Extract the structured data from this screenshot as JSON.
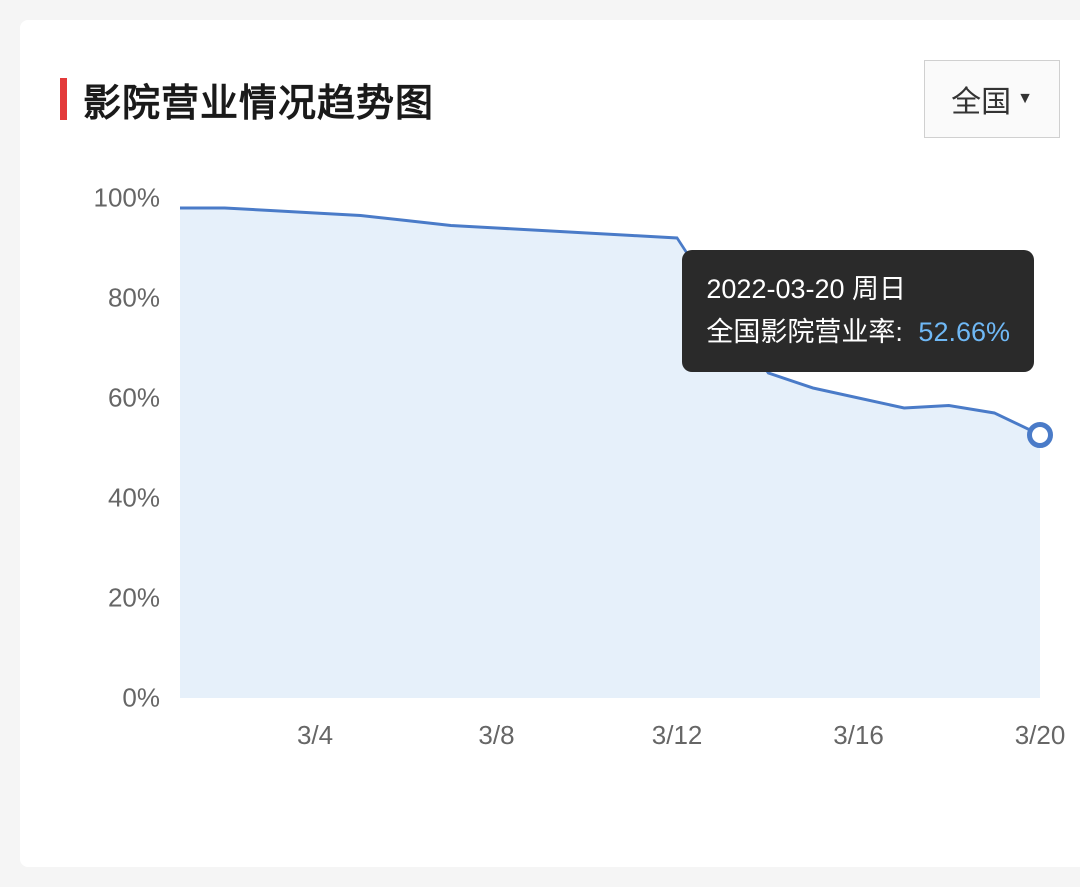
{
  "header": {
    "title": "影院营业情况趋势图",
    "dropdown_label": "全国",
    "title_bar_color": "#e33a3a"
  },
  "chart": {
    "type": "area",
    "background_color": "#ffffff",
    "area_fill_color": "#e6f0fa",
    "line_color": "#4a7bc8",
    "line_width": 3,
    "marker_border_color": "#4a7bc8",
    "marker_fill_color": "#ffffff",
    "y_axis": {
      "min": 0,
      "max": 100,
      "ticks": [
        0,
        20,
        40,
        60,
        80,
        100
      ],
      "unit": "%",
      "label_color": "#666666",
      "label_fontsize": 26
    },
    "x_axis": {
      "labels": [
        "3/4",
        "3/8",
        "3/12",
        "3/16",
        "3/20"
      ],
      "label_positions": [
        0.157,
        0.368,
        0.578,
        0.789,
        1.0
      ],
      "label_color": "#666666",
      "label_fontsize": 26
    },
    "series": {
      "name": "全国影院营业率",
      "x_fraction": [
        0.0,
        0.052,
        0.105,
        0.157,
        0.21,
        0.263,
        0.315,
        0.368,
        0.421,
        0.473,
        0.526,
        0.578,
        0.631,
        0.684,
        0.736,
        0.789,
        0.842,
        0.894,
        0.947,
        1.0
      ],
      "y_value": [
        98,
        98,
        97.5,
        97,
        96.5,
        95.5,
        94.5,
        94,
        93.5,
        93,
        92.5,
        92,
        78,
        65,
        62,
        60,
        58,
        58.5,
        57,
        52.66
      ]
    },
    "highlight_index": 19
  },
  "tooltip": {
    "line1": "2022-03-20 周日",
    "line2_label": "全国影院营业率:",
    "line2_value": "52.66%",
    "bg_color": "#2a2a2a",
    "text_color": "#ffffff",
    "value_color": "#6fb8f5",
    "fontsize": 27
  }
}
